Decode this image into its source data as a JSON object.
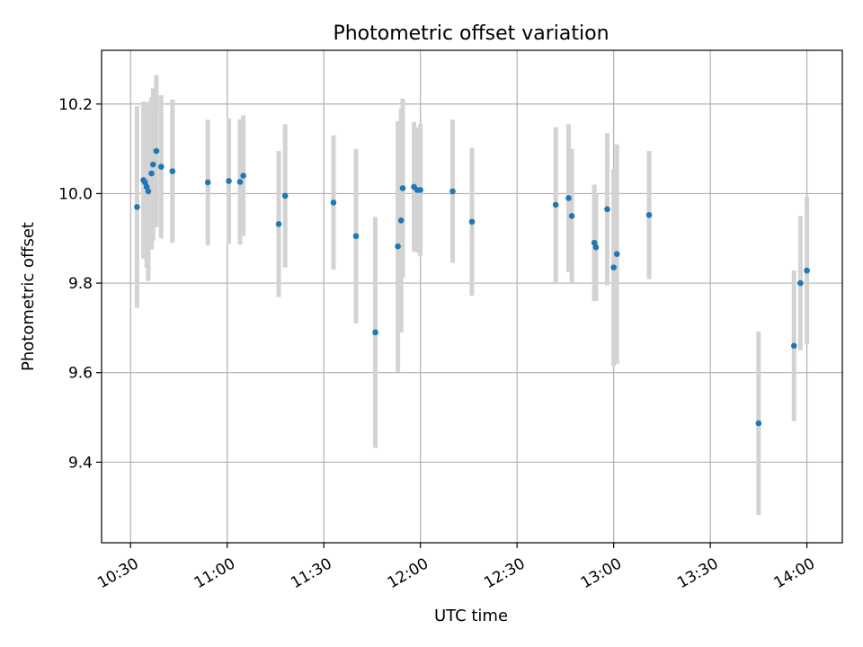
{
  "chart_data": {
    "type": "scatter",
    "title": "Photometric offset variation",
    "xlabel": "UTC time",
    "ylabel": "Photometric offset",
    "grid": true,
    "colors": {
      "point": "#1f77b4",
      "errorbar": "#d3d3d3",
      "grid": "#b0b0b0"
    },
    "xlim": [
      "10:21",
      "14:11"
    ],
    "ylim": [
      9.22,
      10.32
    ],
    "x_ticks": [
      "10:30",
      "11:00",
      "11:30",
      "12:00",
      "12:30",
      "13:00",
      "13:30",
      "14:00"
    ],
    "y_ticks": [
      "9.4",
      "9.6",
      "9.8",
      "10.0",
      "10.2"
    ],
    "points": [
      {
        "x": "10:32",
        "y": 9.97,
        "err": 0.225
      },
      {
        "x": "10:34",
        "y": 10.03,
        "err": 0.175
      },
      {
        "x": "10:34:30",
        "y": 10.025,
        "err": 0.17
      },
      {
        "x": "10:35",
        "y": 10.015,
        "err": 0.18
      },
      {
        "x": "10:35:30",
        "y": 10.005,
        "err": 0.2
      },
      {
        "x": "10:36:30",
        "y": 10.045,
        "err": 0.17
      },
      {
        "x": "10:37",
        "y": 10.065,
        "err": 0.17
      },
      {
        "x": "10:38",
        "y": 10.095,
        "err": 0.17
      },
      {
        "x": "10:39:30",
        "y": 10.06,
        "err": 0.16
      },
      {
        "x": "10:43",
        "y": 10.05,
        "err": 0.16
      },
      {
        "x": "10:54",
        "y": 10.025,
        "err": 0.14
      },
      {
        "x": "11:00:30",
        "y": 10.028,
        "err": 0.14
      },
      {
        "x": "11:04",
        "y": 10.026,
        "err": 0.14
      },
      {
        "x": "11:05",
        "y": 10.04,
        "err": 0.135
      },
      {
        "x": "11:16",
        "y": 9.932,
        "err": 0.163
      },
      {
        "x": "11:18",
        "y": 9.995,
        "err": 0.16
      },
      {
        "x": "11:33",
        "y": 9.98,
        "err": 0.15
      },
      {
        "x": "11:40",
        "y": 9.905,
        "err": 0.195
      },
      {
        "x": "11:46",
        "y": 9.69,
        "err": 0.258
      },
      {
        "x": "11:53",
        "y": 9.882,
        "err": 0.28
      },
      {
        "x": "11:54",
        "y": 9.94,
        "err": 0.25
      },
      {
        "x": "11:54:30",
        "y": 10.012,
        "err": 0.2
      },
      {
        "x": "11:58",
        "y": 10.015,
        "err": 0.145
      },
      {
        "x": "11:59",
        "y": 10.008,
        "err": 0.14
      },
      {
        "x": "12:00",
        "y": 10.008,
        "err": 0.148
      },
      {
        "x": "12:10",
        "y": 10.005,
        "err": 0.16
      },
      {
        "x": "12:16",
        "y": 9.937,
        "err": 0.165
      },
      {
        "x": "12:42",
        "y": 9.975,
        "err": 0.173
      },
      {
        "x": "12:46",
        "y": 9.99,
        "err": 0.165
      },
      {
        "x": "12:47",
        "y": 9.95,
        "err": 0.15
      },
      {
        "x": "12:54",
        "y": 9.89,
        "err": 0.13
      },
      {
        "x": "12:54:30",
        "y": 9.88,
        "err": 0.12
      },
      {
        "x": "12:58",
        "y": 9.965,
        "err": 0.17
      },
      {
        "x": "13:00",
        "y": 9.835,
        "err": 0.22
      },
      {
        "x": "13:01",
        "y": 9.865,
        "err": 0.245
      },
      {
        "x": "13:11",
        "y": 9.952,
        "err": 0.143
      },
      {
        "x": "13:45",
        "y": 9.487,
        "err": 0.205
      },
      {
        "x": "13:56",
        "y": 9.66,
        "err": 0.168
      },
      {
        "x": "13:58",
        "y": 9.8,
        "err": 0.15
      },
      {
        "x": "14:00",
        "y": 9.828,
        "err": 0.165
      }
    ]
  }
}
